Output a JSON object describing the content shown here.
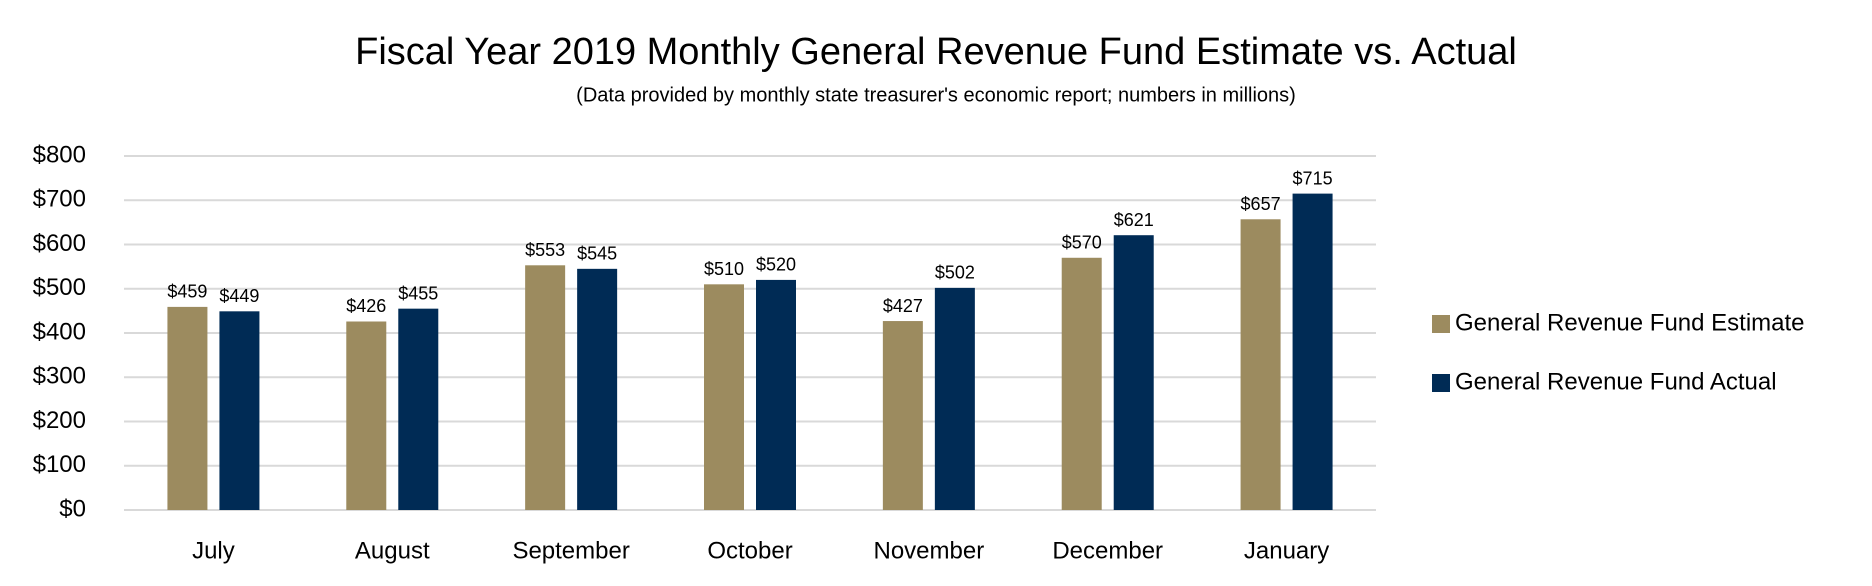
{
  "chart_data": {
    "type": "bar",
    "title": "Fiscal Year 2019 Monthly General Revenue Fund Estimate vs. Actual",
    "subtitle": "(Data provided by monthly state treasurer's economic report; numbers in millions)",
    "categories": [
      "July",
      "August",
      "September",
      "October",
      "November",
      "December",
      "January"
    ],
    "series": [
      {
        "name": "General Revenue Fund Estimate",
        "color": "#9c8b5f",
        "values": [
          459,
          426,
          553,
          510,
          427,
          570,
          657
        ],
        "value_labels": [
          "$459",
          "$426",
          "$553",
          "$510",
          "$427",
          "$570",
          "$657"
        ]
      },
      {
        "name": "General Revenue Fund Actual",
        "color": "#002b55",
        "values": [
          449,
          455,
          545,
          520,
          502,
          621,
          715
        ],
        "value_labels": [
          "$449",
          "$455",
          "$545",
          "$520",
          "$502",
          "$621",
          "$715"
        ]
      }
    ],
    "ylim": [
      0,
      800
    ],
    "yticks": [
      {
        "value": 0,
        "label": "$0"
      },
      {
        "value": 100,
        "label": "$100"
      },
      {
        "value": 200,
        "label": "$200"
      },
      {
        "value": 300,
        "label": "$300"
      },
      {
        "value": 400,
        "label": "$400"
      },
      {
        "value": 500,
        "label": "$500"
      },
      {
        "value": 600,
        "label": "$600"
      },
      {
        "value": 700,
        "label": "$700"
      },
      {
        "value": 800,
        "label": "$800"
      }
    ],
    "grid": true,
    "legend": "right"
  }
}
